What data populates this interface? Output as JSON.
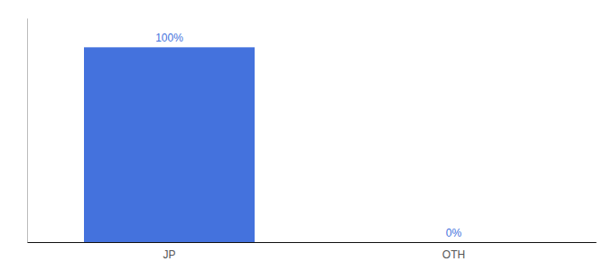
{
  "chart_data": {
    "type": "bar",
    "categories": [
      "JP",
      "OTH"
    ],
    "values": [
      100,
      0
    ],
    "value_labels": [
      "100%",
      "0%"
    ],
    "data_labels": true,
    "color": "#4472dd",
    "ylim": [
      0,
      115
    ],
    "tick_labels": "x"
  }
}
